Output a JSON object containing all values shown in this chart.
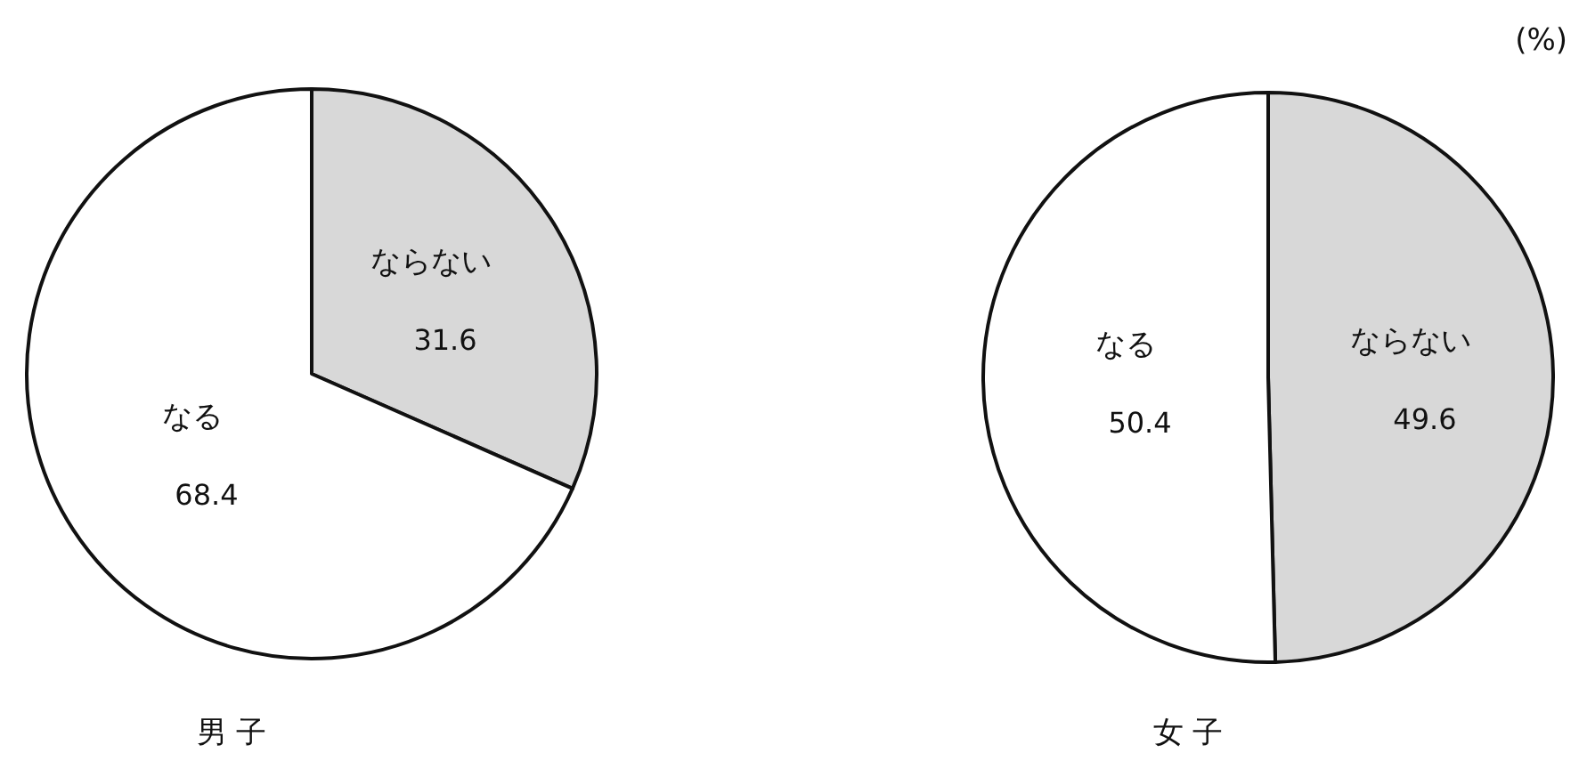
{
  "chart_data": [
    {
      "type": "pie",
      "categories": [
        "ならない",
        "なる"
      ],
      "values": [
        31.6,
        68.4
      ],
      "colors": [
        "#d8d8d8",
        "#ffffff"
      ],
      "data_labels": true,
      "xlabel": "男 子"
    },
    {
      "type": "pie",
      "categories": [
        "ならない",
        "なる"
      ],
      "values": [
        49.6,
        50.4
      ],
      "colors": [
        "#d8d8d8",
        "#ffffff"
      ],
      "data_labels": true,
      "xlabel": "女 子",
      "annotations": [
        "(%)"
      ]
    }
  ]
}
